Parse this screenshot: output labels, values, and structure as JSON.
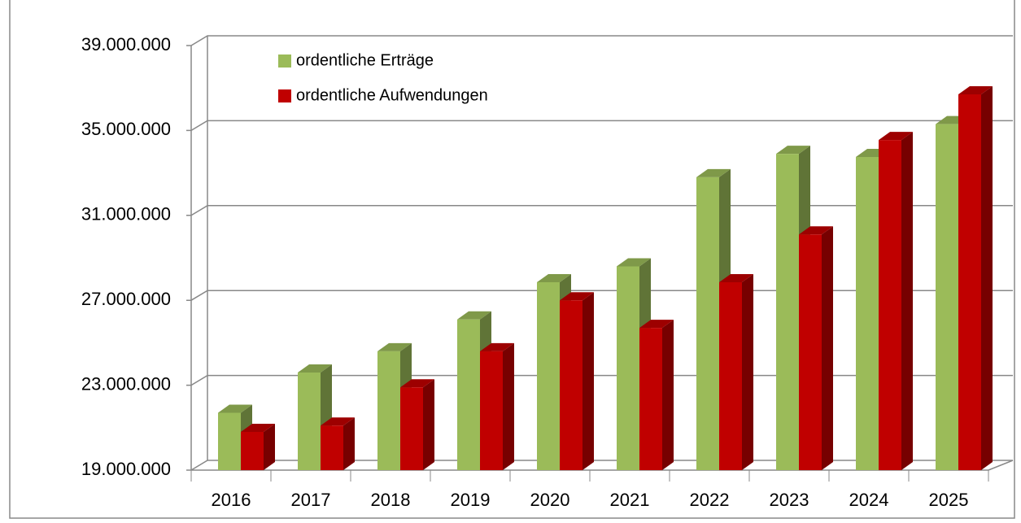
{
  "chart_data": {
    "type": "bar3d",
    "categories": [
      "2016",
      "2017",
      "2018",
      "2019",
      "2020",
      "2021",
      "2022",
      "2023",
      "2024",
      "2025"
    ],
    "series": [
      {
        "name": "ordentliche Erträge",
        "color": "#9bbb59",
        "values": [
          21700000,
          23600000,
          24600000,
          26100000,
          27850000,
          28600000,
          32800000,
          33900000,
          33750000,
          35300000
        ]
      },
      {
        "name": "ordentliche Aufwendungen",
        "color": "#c00000",
        "values": [
          20800000,
          21100000,
          22900000,
          24600000,
          27000000,
          25700000,
          27850000,
          30100000,
          34550000,
          36700000
        ]
      }
    ],
    "ylim": [
      19000000,
      39000000
    ],
    "yticks": [
      {
        "value": 19000000,
        "label": "19.000.000"
      },
      {
        "value": 23000000,
        "label": "23.000.000"
      },
      {
        "value": 27000000,
        "label": "27.000.000"
      },
      {
        "value": 31000000,
        "label": "31.000.000"
      },
      {
        "value": 35000000,
        "label": "35.000.000"
      },
      {
        "value": 39000000,
        "label": "39.000.000"
      }
    ],
    "grid": true,
    "legend": "top-left"
  }
}
